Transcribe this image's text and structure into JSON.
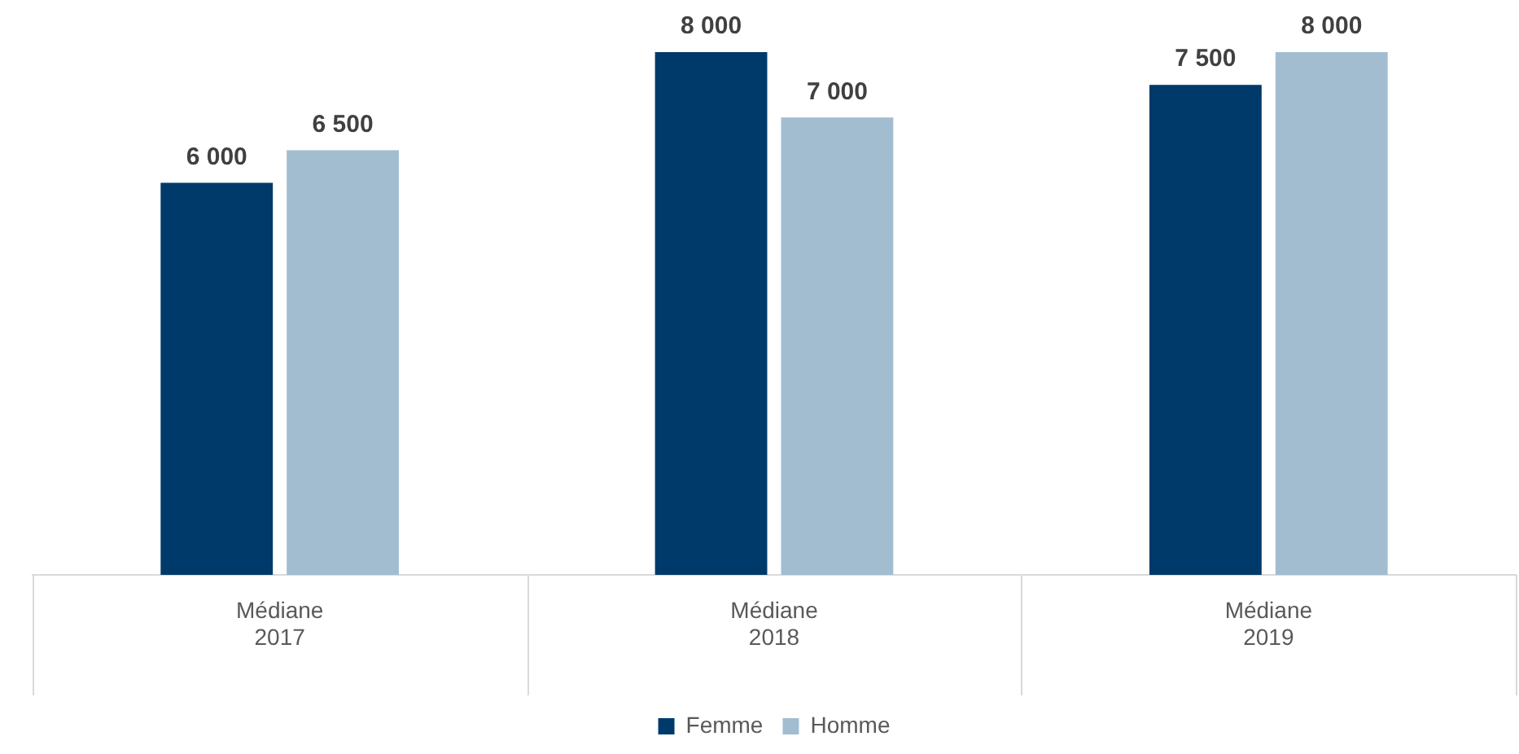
{
  "chart_data": {
    "type": "bar",
    "categories": [
      "Médiane 2017",
      "Médiane 2018",
      "Médiane 2019"
    ],
    "ylim": [
      0,
      8000
    ],
    "legend": "bottom",
    "series": [
      {
        "name": "Femme",
        "color": "#003a6b",
        "values": [
          6000,
          8000,
          7500
        ],
        "value_labels": [
          "6 000",
          "8 000",
          "7 500"
        ]
      },
      {
        "name": "Homme",
        "color": "#a3bdd0",
        "values": [
          6500,
          7000,
          8000
        ],
        "value_labels": [
          "6 500",
          "7 000",
          "8 000"
        ]
      }
    ]
  }
}
